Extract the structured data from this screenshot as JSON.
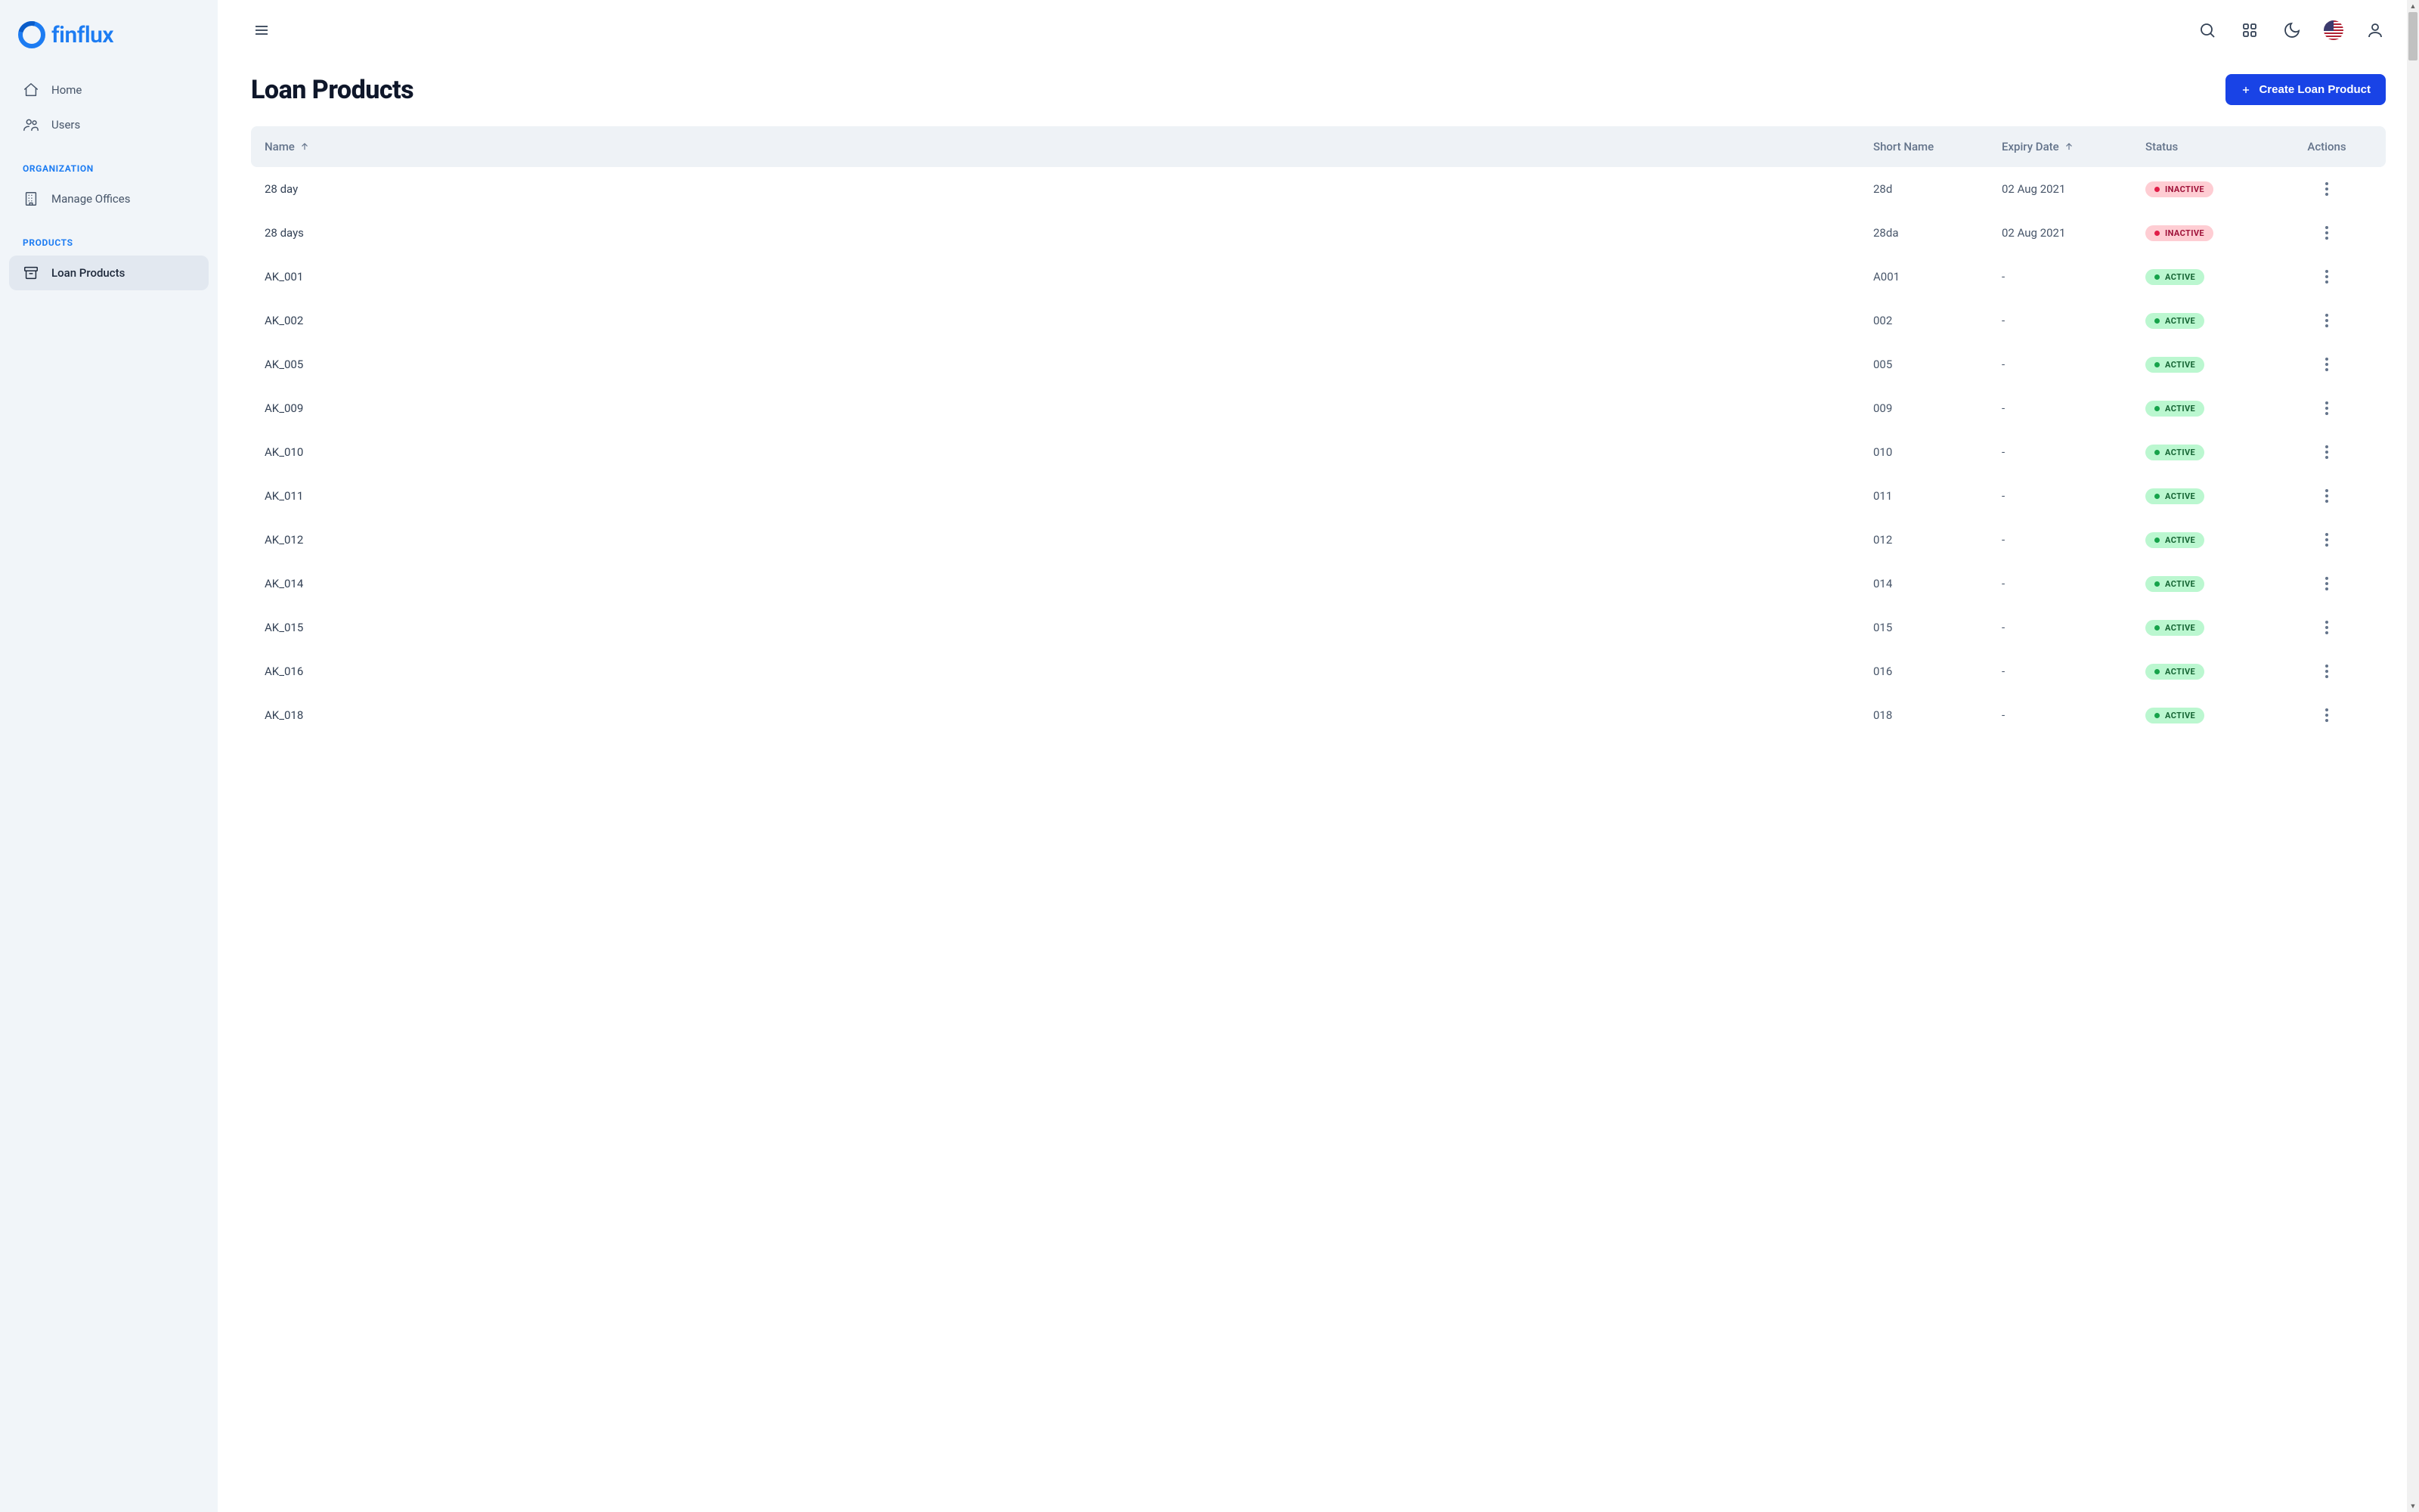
{
  "brand": {
    "name": "finflux"
  },
  "sidebar": {
    "primary": [
      {
        "label": "Home",
        "icon": "home"
      },
      {
        "label": "Users",
        "icon": "users"
      }
    ],
    "groups": [
      {
        "heading": "ORGANIZATION",
        "items": [
          {
            "label": "Manage Offices",
            "icon": "building"
          }
        ]
      },
      {
        "heading": "PRODUCTS",
        "items": [
          {
            "label": "Loan Products",
            "icon": "archive",
            "active": true
          }
        ]
      }
    ]
  },
  "page": {
    "title": "Loan Products",
    "create_label": "Create Loan Product"
  },
  "table": {
    "columns": {
      "name": "Name",
      "short_name": "Short Name",
      "expiry": "Expiry Date",
      "status": "Status",
      "actions": "Actions"
    },
    "rows": [
      {
        "name": "28 day",
        "short": "28d",
        "expiry": "02 Aug 2021",
        "status": "INACTIVE"
      },
      {
        "name": "28 days",
        "short": "28da",
        "expiry": "02 Aug 2021",
        "status": "INACTIVE"
      },
      {
        "name": "AK_001",
        "short": "A001",
        "expiry": "-",
        "status": "ACTIVE"
      },
      {
        "name": "AK_002",
        "short": "002",
        "expiry": "-",
        "status": "ACTIVE"
      },
      {
        "name": "AK_005",
        "short": "005",
        "expiry": "-",
        "status": "ACTIVE"
      },
      {
        "name": "AK_009",
        "short": "009",
        "expiry": "-",
        "status": "ACTIVE"
      },
      {
        "name": "AK_010",
        "short": "010",
        "expiry": "-",
        "status": "ACTIVE"
      },
      {
        "name": "AK_011",
        "short": "011",
        "expiry": "-",
        "status": "ACTIVE"
      },
      {
        "name": "AK_012",
        "short": "012",
        "expiry": "-",
        "status": "ACTIVE"
      },
      {
        "name": "AK_014",
        "short": "014",
        "expiry": "-",
        "status": "ACTIVE"
      },
      {
        "name": "AK_015",
        "short": "015",
        "expiry": "-",
        "status": "ACTIVE"
      },
      {
        "name": "AK_016",
        "short": "016",
        "expiry": "-",
        "status": "ACTIVE"
      },
      {
        "name": "AK_018",
        "short": "018",
        "expiry": "-",
        "status": "ACTIVE"
      }
    ]
  },
  "colors": {
    "accent": "#1943e6",
    "brand": "#1d7cf2",
    "badge_active_bg": "#bbf7d0",
    "badge_active_fg": "#166534",
    "badge_inactive_bg": "#fecdd3",
    "badge_inactive_fg": "#9f1239"
  }
}
